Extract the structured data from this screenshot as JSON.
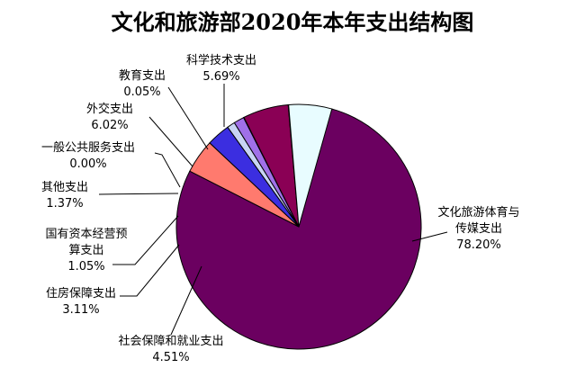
{
  "chart_data": {
    "type": "pie",
    "title": "文化和旅游部2020年本年支出结构图",
    "slices": [
      {
        "label": [
          "文化旅游体育与",
          "传媒支出"
        ],
        "value_label": "78.20%",
        "value": 78.2,
        "color": "#6b0060"
      },
      {
        "label": [
          "社会保障和就业支出"
        ],
        "value_label": "4.51%",
        "value": 4.51,
        "color": "#ff7a6e"
      },
      {
        "label": [
          "住房保障支出"
        ],
        "value_label": "3.11%",
        "value": 3.11,
        "color": "#3b2ee0"
      },
      {
        "label": [
          "国有资本经营预",
          "算支出"
        ],
        "value_label": "1.05%",
        "value": 1.05,
        "color": "#c8d4f4"
      },
      {
        "label": [
          "其他支出"
        ],
        "value_label": "1.37%",
        "value": 1.37,
        "color": "#a070e8"
      },
      {
        "label": [
          "一般公共服务支出"
        ],
        "value_label": "0.00%",
        "value": 0.0,
        "color": "#7a005e"
      },
      {
        "label": [
          "外交支出"
        ],
        "value_label": "6.02%",
        "value": 6.02,
        "color": "#8a0055"
      },
      {
        "label": [
          "教育支出"
        ],
        "value_label": "0.05%",
        "value": 0.05,
        "color": "#00208a"
      },
      {
        "label": [
          "科学技术支出"
        ],
        "value_label": "5.69%",
        "value": 5.69,
        "color": "#e8fcff"
      }
    ]
  }
}
